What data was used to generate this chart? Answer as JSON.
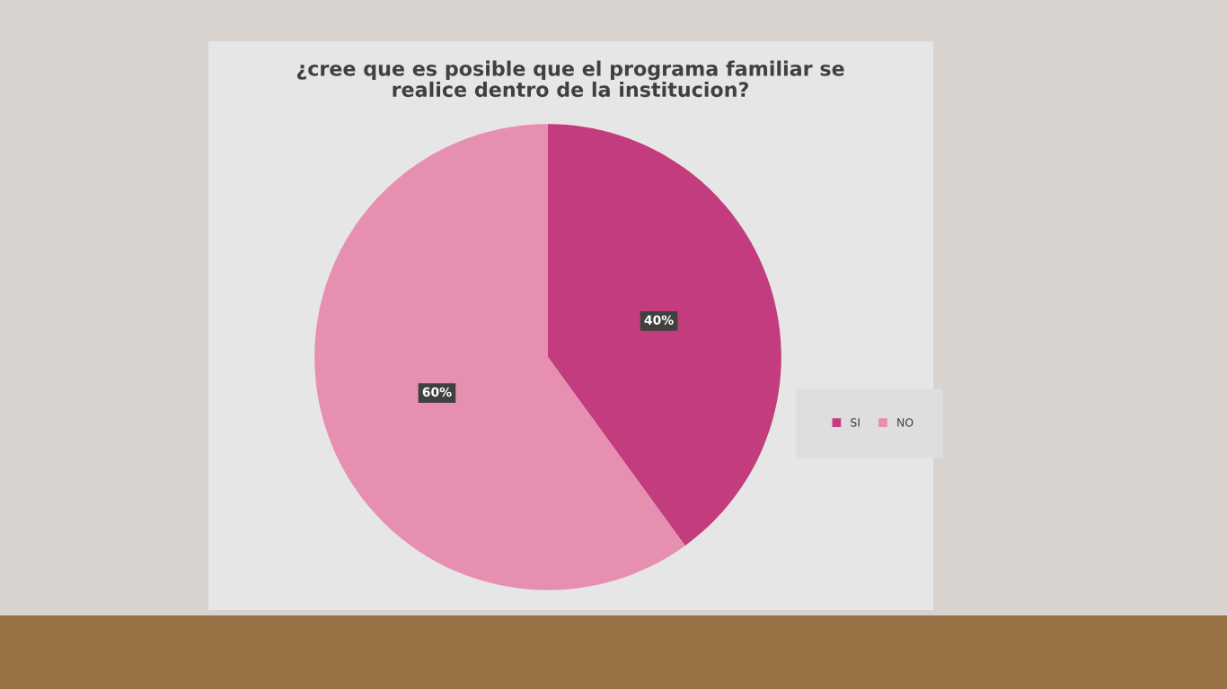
{
  "chart_data": {
    "type": "pie",
    "title": "¿cree que es posible que el programa familiar se\nrealice dentro de la institucion?",
    "categories": [
      "SI",
      "NO"
    ],
    "values": [
      40,
      60
    ],
    "colors": [
      "#c33c7e",
      "#e78fb0"
    ],
    "value_labels": [
      "40%",
      "60%"
    ],
    "legend": "right"
  }
}
